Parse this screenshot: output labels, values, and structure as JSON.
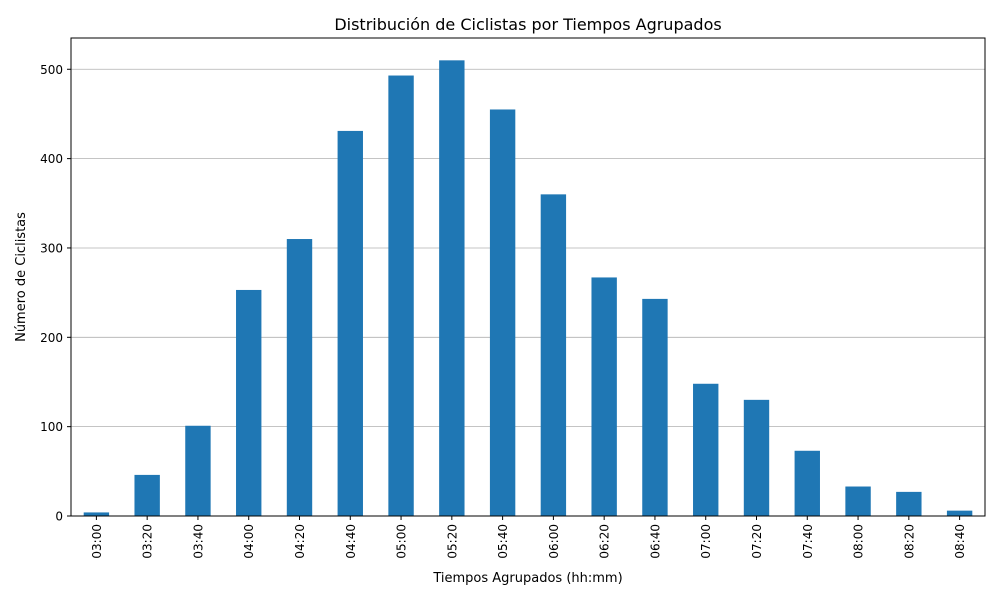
{
  "chart_data": {
    "type": "bar",
    "title": "Distribución de Ciclistas por Tiempos Agrupados",
    "xlabel": "Tiempos Agrupados (hh:mm)",
    "ylabel": "Número de Ciclistas",
    "categories": [
      "03:00",
      "03:20",
      "03:40",
      "04:00",
      "04:20",
      "04:40",
      "05:00",
      "05:20",
      "05:40",
      "06:00",
      "06:20",
      "06:40",
      "07:00",
      "07:20",
      "07:40",
      "08:00",
      "08:20",
      "08:40"
    ],
    "values": [
      4,
      46,
      101,
      253,
      310,
      431,
      493,
      510,
      455,
      360,
      267,
      243,
      148,
      130,
      73,
      33,
      27,
      6
    ],
    "ylim": [
      0,
      535
    ],
    "yticks": [
      0,
      100,
      200,
      300,
      400,
      500
    ],
    "grid": "horizontal",
    "legend": "none",
    "colors": {
      "bar": "#1f77b4",
      "grid": "#b0b0b0",
      "axis": "#000000"
    }
  }
}
